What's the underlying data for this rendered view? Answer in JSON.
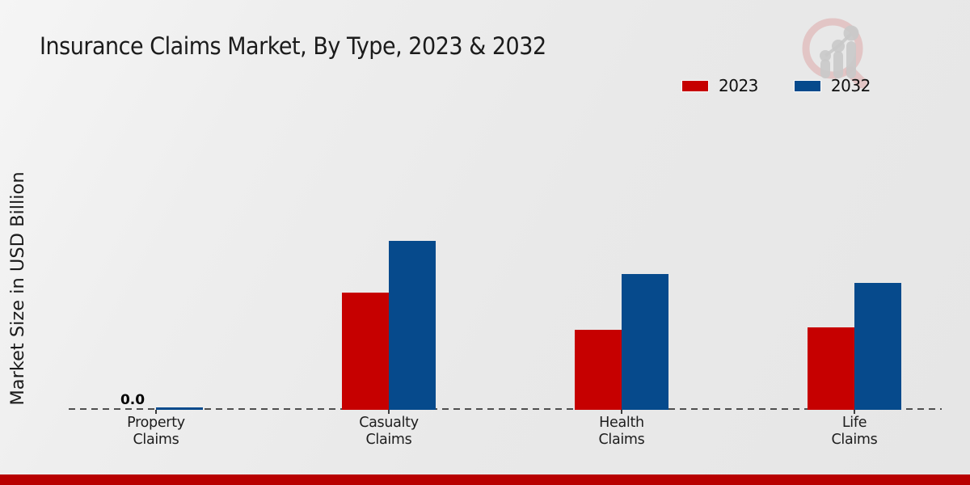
{
  "page": {
    "title": "Insurance Claims Market, By Type, 2023 & 2032",
    "watermark_icon": "magnifier-bar-chart-logo",
    "footer_color": "#b80000"
  },
  "annotations": {
    "zero_label": "0.0"
  },
  "chart_data": {
    "type": "bar",
    "title": "Insurance Claims Market, By Type, 2023 & 2032",
    "xlabel": "",
    "ylabel": "Market Size in USD Billion",
    "categories": [
      "Property Claims",
      "Casualty Claims",
      "Health Claims",
      "Life Claims"
    ],
    "series": [
      {
        "name": "2023",
        "color": "#c60000",
        "values": [
          0.0,
          5.0,
          3.4,
          3.5
        ]
      },
      {
        "name": "2032",
        "color": "#064a8c",
        "values": [
          0.1,
          7.2,
          5.8,
          5.4
        ]
      }
    ],
    "ylim": [
      0,
      8.5
    ],
    "grid": false,
    "legend_position": "top-right",
    "baseline_style": "dashed",
    "data_labels": [
      {
        "series": "2023",
        "category": "Property Claims",
        "label": "0.0"
      }
    ]
  }
}
